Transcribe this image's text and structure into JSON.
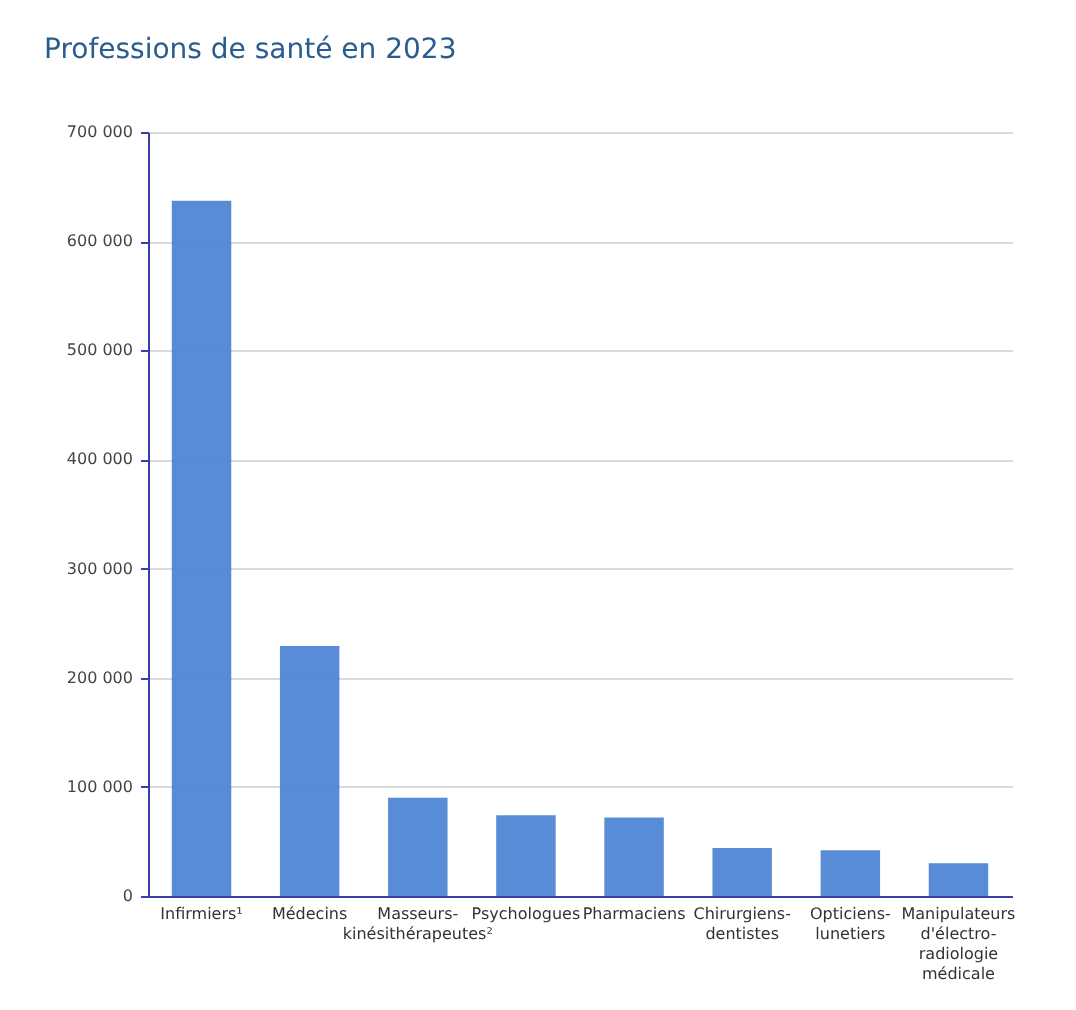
{
  "chart_data": {
    "type": "bar",
    "title": "Professions de santé en 2023",
    "categories": [
      "Infirmiers¹",
      "Médecins",
      "Masseurs-kinésithérapeutes²",
      "Psychologues",
      "Pharmaciens",
      "Chirurgiens-dentistes",
      "Opticiens-lunetiers",
      "Manipulateurs d'électro-radiologie médicale"
    ],
    "values": [
      637000,
      229000,
      90000,
      74000,
      72000,
      44000,
      42000,
      30000
    ],
    "color": "#4f86d4",
    "ylim": [
      0,
      700000
    ],
    "yticks": [
      {
        "value": 0,
        "label": "0"
      },
      {
        "value": 100000,
        "label": "100 000"
      },
      {
        "value": 200000,
        "label": "200 000"
      },
      {
        "value": 300000,
        "label": "300 000"
      },
      {
        "value": 400000,
        "label": "400 000"
      },
      {
        "value": 500000,
        "label": "500 000"
      },
      {
        "value": 600000,
        "label": "600 000"
      },
      {
        "value": 700000,
        "label": "700 000"
      }
    ],
    "grid": "y"
  }
}
